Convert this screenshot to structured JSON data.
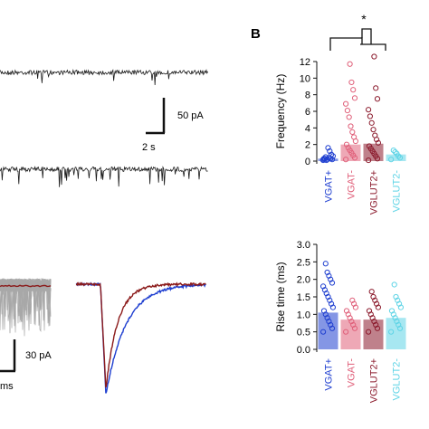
{
  "panel_label": "B",
  "significance_marker": "*",
  "scale_bars": {
    "top_amplitude": "50 pA",
    "top_time": "2 s",
    "bottom_amplitude": "30 pA",
    "bottom_time": "ms"
  },
  "colors": {
    "trace": "#1a1a1a",
    "overlay_gray": "#a8a8a8",
    "avg_red": "#8b1a1a",
    "vgat_pos": "#1f3fd0",
    "vgat_neg": "#e0607a",
    "vglut2_pos": "#8b1a2c",
    "vglut2_neg": "#5fd4e6"
  },
  "chart_data": [
    {
      "type": "bar",
      "categories": [
        "VGAT+",
        "VGAT-",
        "VGLUT2+",
        "VGLUT2-"
      ],
      "values": [
        0.3,
        2.0,
        2.1,
        0.8
      ],
      "ylabel": "Frequency (Hz)",
      "ylim": [
        0,
        12
      ],
      "yticks": [
        0,
        2,
        4,
        6,
        8,
        10,
        12
      ],
      "points": [
        [
          0.1,
          0.2,
          0.3,
          0.4,
          0.2,
          0.5,
          0.3,
          0.6,
          0.8,
          1.2,
          1.6,
          0.1,
          0.3,
          0.2
        ],
        [
          0.2,
          0.4,
          0.7,
          1.0,
          1.3,
          1.6,
          2.0,
          2.4,
          2.9,
          3.5,
          4.2,
          5.3,
          6.1,
          6.9,
          7.6,
          8.6,
          9.5,
          11.7
        ],
        [
          0.1,
          0.3,
          0.6,
          0.9,
          1.2,
          1.5,
          1.8,
          2.2,
          2.6,
          3.1,
          3.8,
          4.6,
          5.4,
          6.2,
          7.5,
          8.8,
          12.6
        ],
        [
          0.2,
          0.4,
          0.6,
          0.9,
          1.1,
          1.3
        ]
      ]
    },
    {
      "type": "bar",
      "categories": [
        "VGAT+",
        "VGAT-",
        "VGLUT2+",
        "VGLUT2-"
      ],
      "values": [
        1.05,
        0.85,
        0.85,
        0.9
      ],
      "ylabel": "Rise time (ms)",
      "ylim": [
        0,
        3.0
      ],
      "yticks": [
        "0.0",
        "0.5",
        "1.0",
        "1.5",
        "2.0",
        "2.5",
        "3.0"
      ],
      "points": [
        [
          0.5,
          0.6,
          0.7,
          0.8,
          0.9,
          1.0,
          1.1,
          1.2,
          1.3,
          1.4,
          1.5,
          1.6,
          1.7,
          1.8,
          1.9,
          2.0,
          2.1,
          2.2,
          2.45
        ],
        [
          0.5,
          0.6,
          0.7,
          0.8,
          0.9,
          1.0,
          1.1,
          1.2,
          1.3,
          1.4
        ],
        [
          0.5,
          0.6,
          0.7,
          0.8,
          0.9,
          1.0,
          1.1,
          1.2,
          1.3,
          1.4,
          1.5,
          1.65
        ],
        [
          0.5,
          0.6,
          0.7,
          0.8,
          0.9,
          1.0,
          1.1,
          1.2,
          1.3,
          1.4,
          1.5,
          1.85
        ]
      ]
    }
  ]
}
